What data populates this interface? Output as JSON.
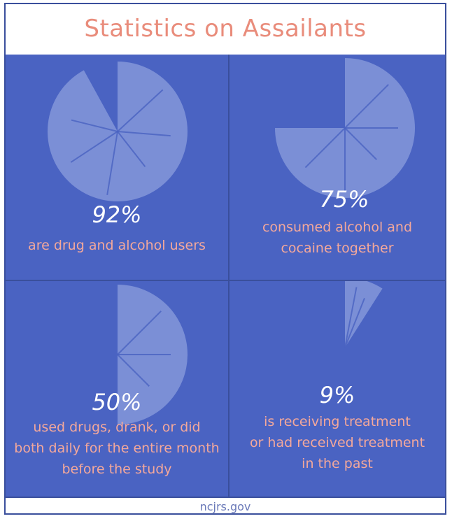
{
  "title": "Statistics on Assailants",
  "source": "ncjrs.gov",
  "colors": {
    "panel": "#4a63c2",
    "pie": "#7b8fd6",
    "crack": "#4a63c2",
    "title": "#e98c7b",
    "description": "#f4a89b",
    "percent": "#ffffff"
  },
  "chart_data": [
    {
      "type": "pie",
      "value_percent": 92,
      "label": "92%",
      "description": [
        "are drug and alcohol users"
      ]
    },
    {
      "type": "pie",
      "value_percent": 75,
      "label": "75%",
      "description": [
        "consumed alcohol and",
        "cocaine together"
      ]
    },
    {
      "type": "pie",
      "value_percent": 50,
      "label": "50%",
      "description": [
        "used drugs, drank, or did",
        "both daily for the entire month",
        "before the study"
      ]
    },
    {
      "type": "pie",
      "value_percent": 9,
      "label": "9%",
      "description": [
        "is receiving treatment",
        "or had received treatment",
        "in the past"
      ]
    }
  ]
}
